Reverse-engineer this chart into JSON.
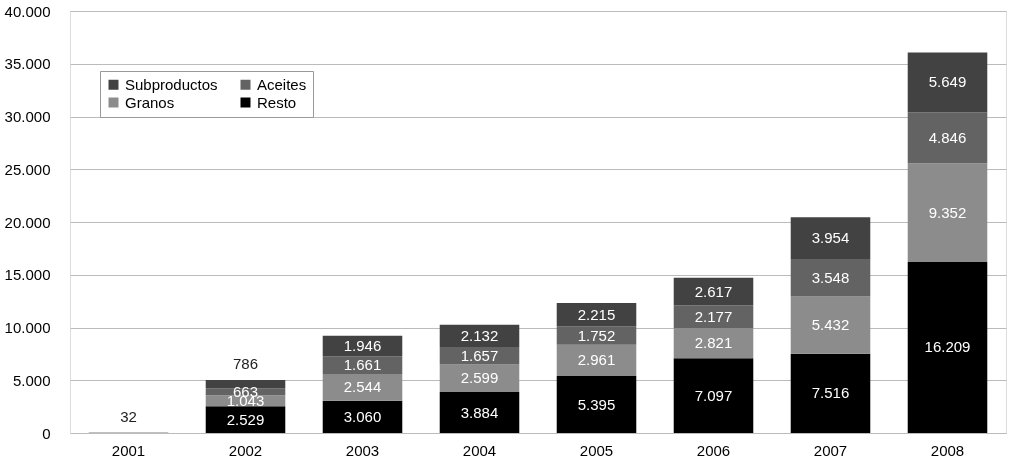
{
  "chart_data": {
    "type": "bar",
    "stacked": true,
    "categories": [
      "2001",
      "2002",
      "2003",
      "2004",
      "2005",
      "2006",
      "2007",
      "2008"
    ],
    "series": [
      {
        "name": "Resto",
        "color": "#000000",
        "values": [
          32,
          2529,
          3060,
          3884,
          5395,
          7097,
          7516,
          16209
        ],
        "value_labels": [
          "32",
          "2.529",
          "3.060",
          "3.884",
          "5.395",
          "7.097",
          "7.516",
          "16.209"
        ]
      },
      {
        "name": "Granos",
        "color": "#8c8c8c",
        "values": [
          null,
          1043,
          2544,
          2599,
          2961,
          2821,
          5432,
          9352
        ],
        "value_labels": [
          null,
          "1.043",
          "2.544",
          "2.599",
          "2.961",
          "2.821",
          "5.432",
          "9.352"
        ]
      },
      {
        "name": "Aceites",
        "color": "#636363",
        "values": [
          null,
          663,
          1661,
          1657,
          1752,
          2177,
          3548,
          4846
        ],
        "value_labels": [
          null,
          "663",
          "1.661",
          "1.657",
          "1.752",
          "2.177",
          "3.548",
          "4.846"
        ]
      },
      {
        "name": "Subproductos",
        "color": "#424242",
        "values": [
          null,
          786,
          1946,
          2132,
          2215,
          2617,
          3954,
          5649
        ],
        "value_labels": [
          null,
          "786",
          "1.946",
          "2.132",
          "2.215",
          "2.617",
          "3.954",
          "5.649"
        ]
      }
    ],
    "ylim": [
      0,
      40000
    ],
    "yticks": [
      {
        "value": 0,
        "label": "0"
      },
      {
        "value": 5000,
        "label": "5.000"
      },
      {
        "value": 10000,
        "label": "10.000"
      },
      {
        "value": 15000,
        "label": "15.000"
      },
      {
        "value": 20000,
        "label": "20.000"
      },
      {
        "value": 25000,
        "label": "25.000"
      },
      {
        "value": 30000,
        "label": "30.000"
      },
      {
        "value": 35000,
        "label": "35.000"
      },
      {
        "value": 40000,
        "label": "40.000"
      }
    ],
    "grid": "y",
    "legend": "top left"
  }
}
